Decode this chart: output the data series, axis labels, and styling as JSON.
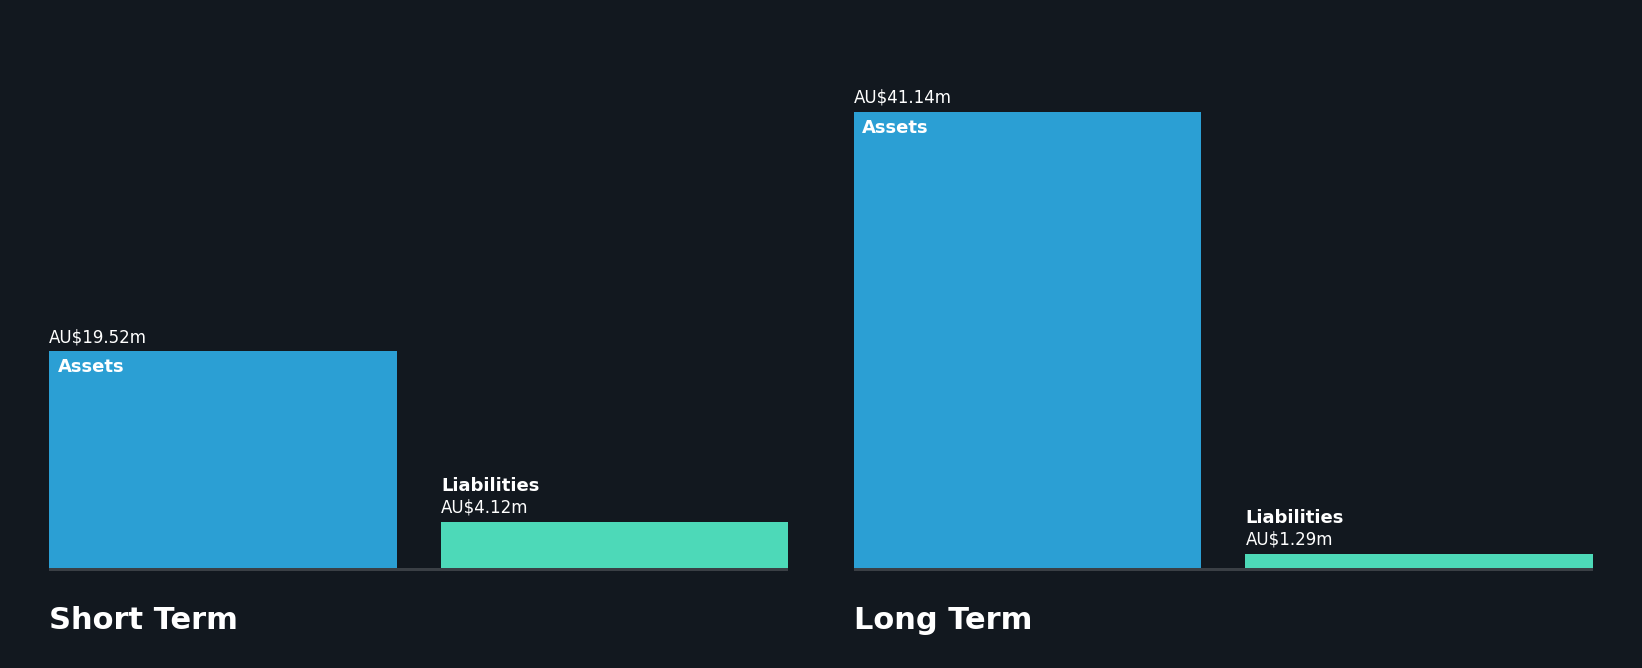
{
  "background_color": "#12181f",
  "short_term": {
    "assets_value": 19.52,
    "assets_label": "AU$19.52m",
    "assets_color": "#2b9fd4",
    "liabilities_value": 4.12,
    "liabilities_label": "AU$4.12m",
    "liabilities_color": "#4dd9b8",
    "section_label": "Short Term",
    "bar_label_assets": "Assets",
    "bar_label_liabilities": "Liabilities"
  },
  "long_term": {
    "assets_value": 41.14,
    "assets_label": "AU$41.14m",
    "assets_color": "#2b9fd4",
    "liabilities_value": 1.29,
    "liabilities_label": "AU$1.29m",
    "liabilities_color": "#4dd9b8",
    "section_label": "Long Term",
    "bar_label_assets": "Assets",
    "bar_label_liabilities": "Liabilities"
  },
  "text_color": "#ffffff",
  "section_label_fontsize": 22,
  "bar_inner_label_fontsize": 13,
  "value_label_fontsize": 12,
  "ylim_max": 44,
  "gap_color": "#12181f"
}
